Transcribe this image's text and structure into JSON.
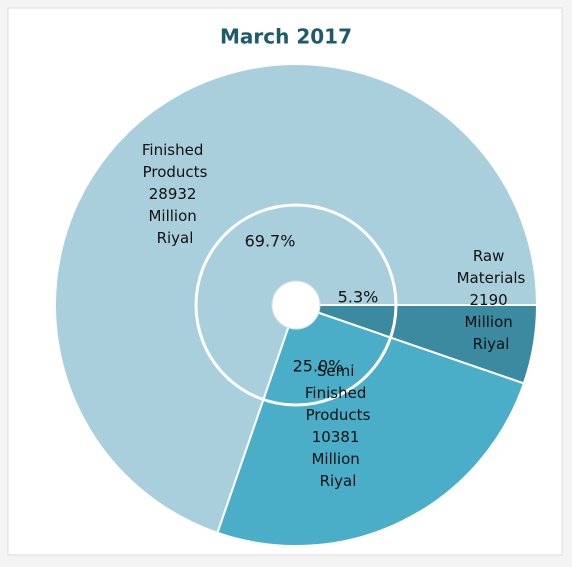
{
  "chart_data": {
    "type": "pie",
    "title": "March 2017",
    "categories": [
      "Raw Materials",
      "Semi Finished Products",
      "Finished Products"
    ],
    "values": [
      2190,
      10381,
      28932
    ],
    "value_labels": [
      "2190 Million Riyal",
      "10381 Million Riyal",
      "28932 Million Riyal"
    ],
    "percent_labels": [
      "5.3%",
      "25.0%",
      "69.7%"
    ],
    "colors": [
      "#3b8aa0",
      "#4aaec8",
      "#a9cfdd"
    ]
  }
}
